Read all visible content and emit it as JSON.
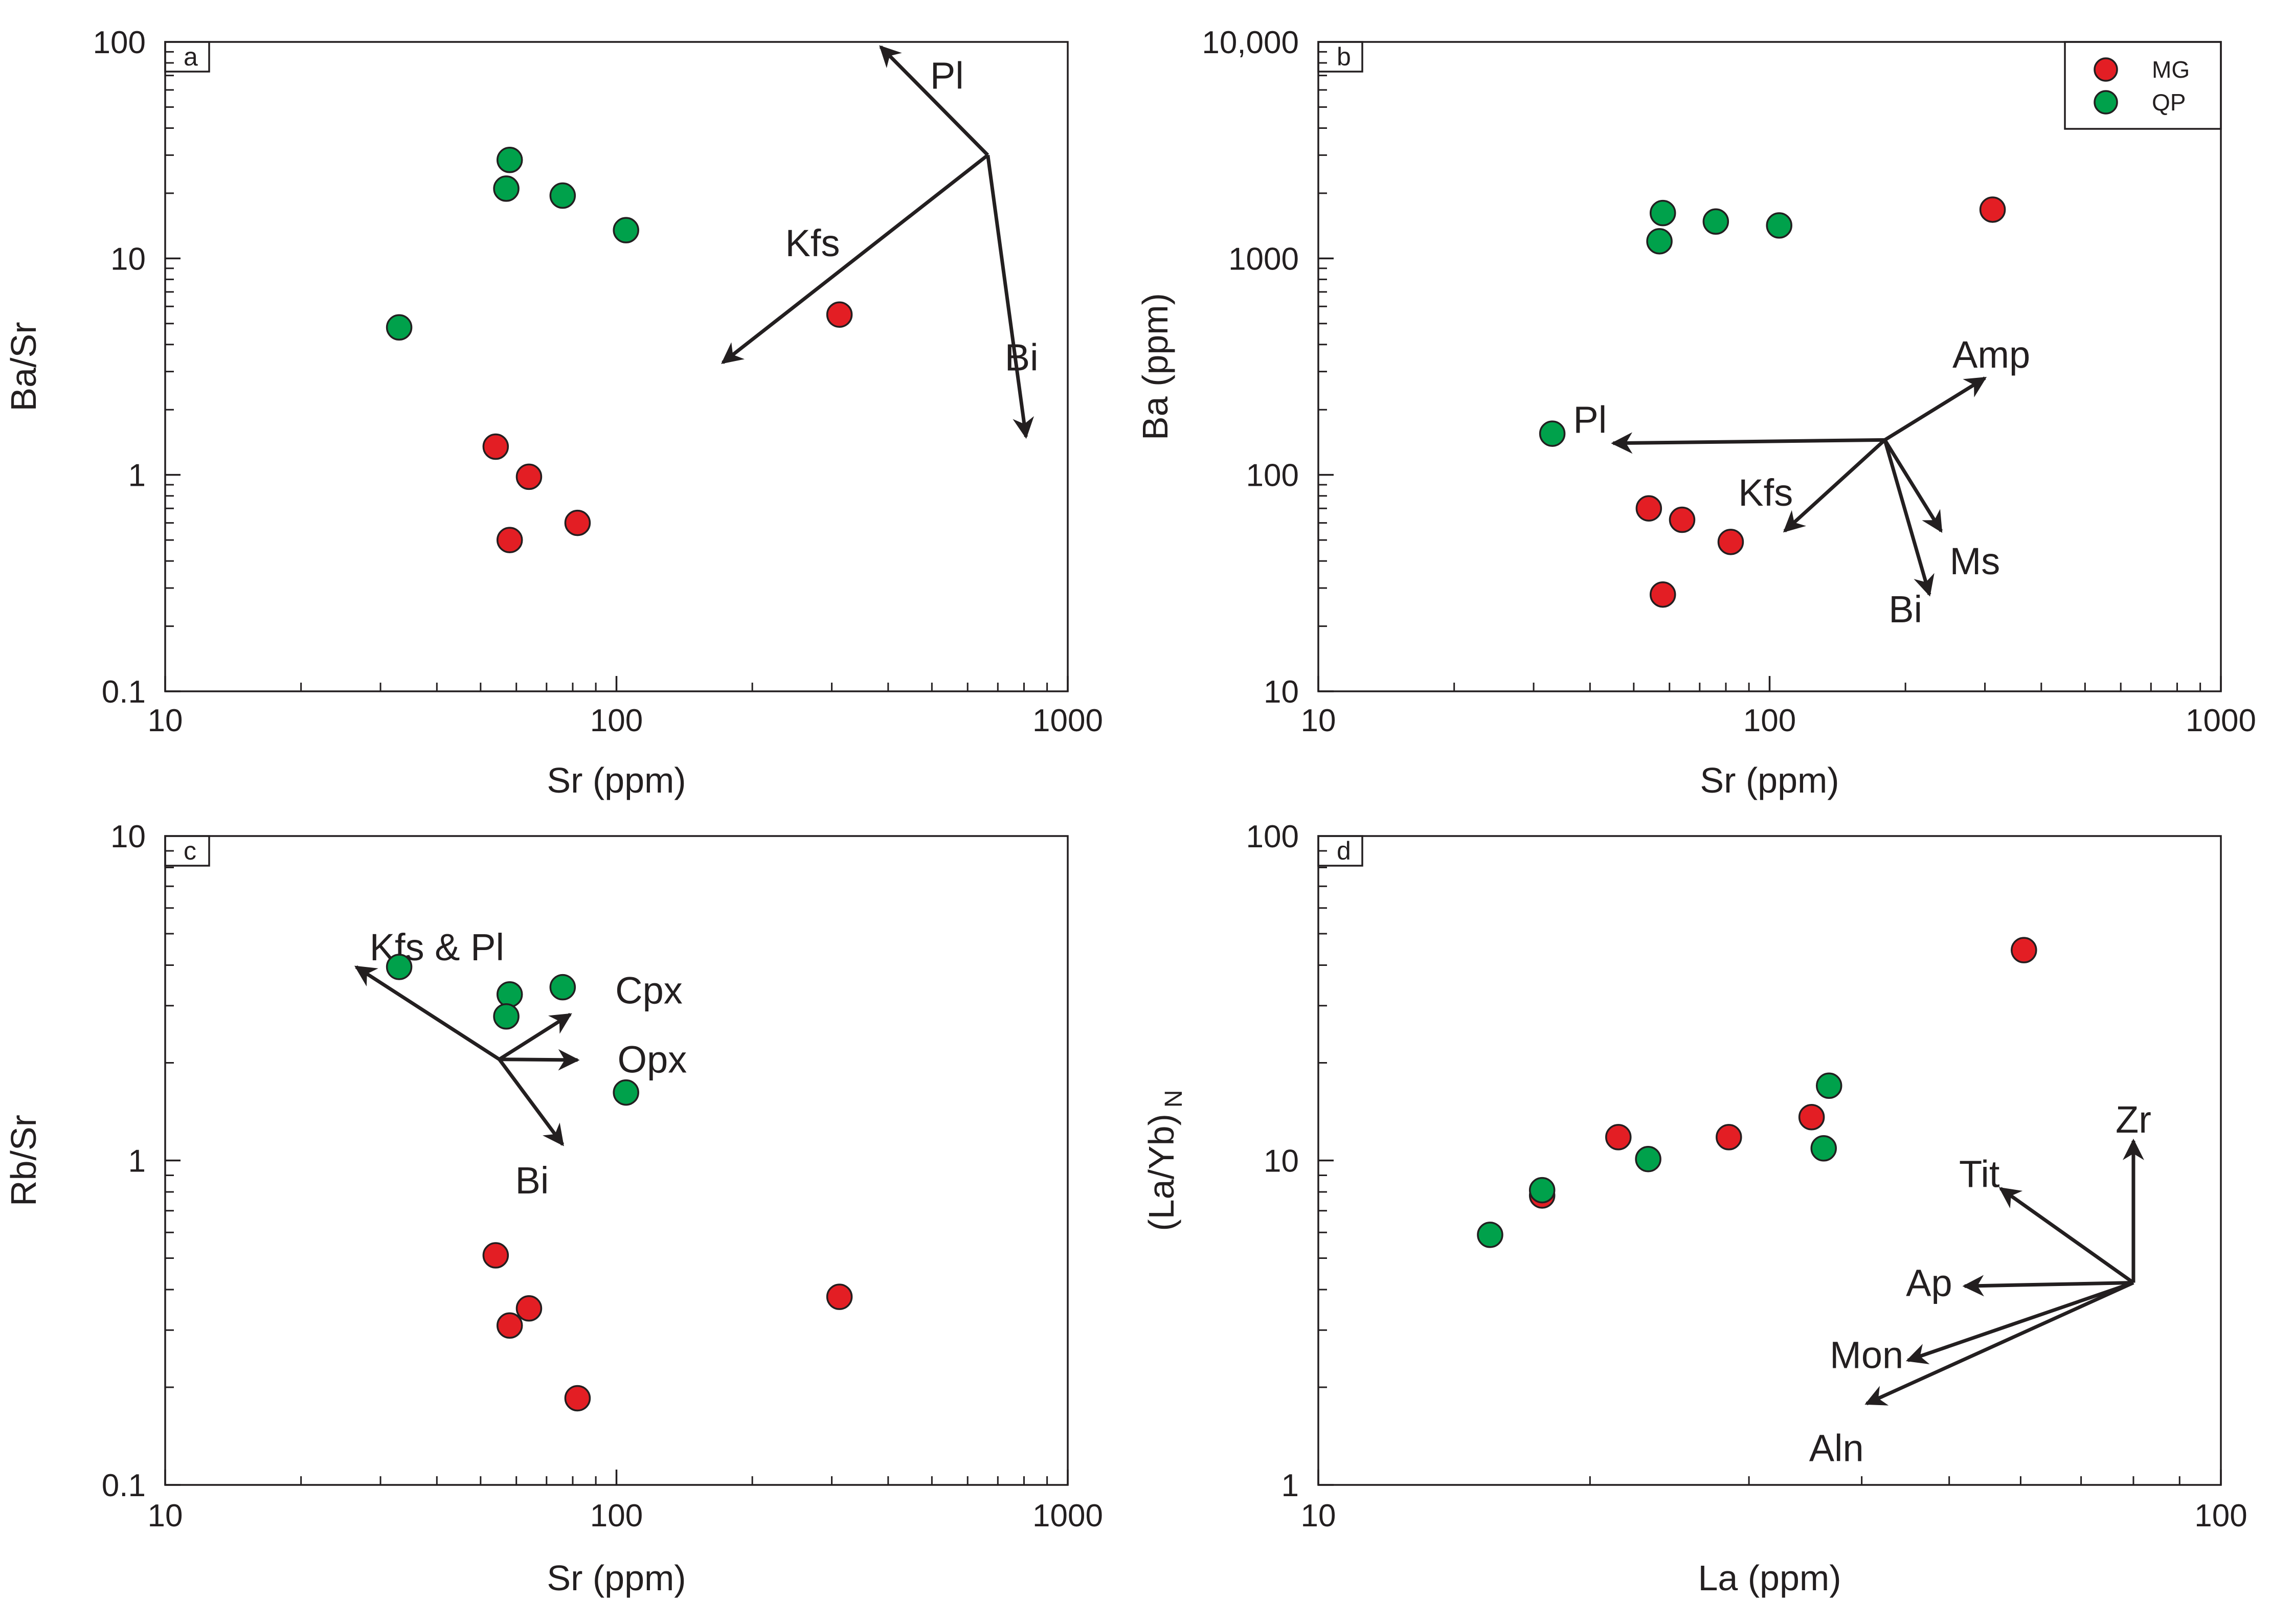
{
  "colors": {
    "MG": "#e31e24",
    "QP": "#00a14b",
    "ink": "#231f20"
  },
  "chart_data": [
    {
      "panel": "a",
      "type": "scatter",
      "xlabel": "Sr (ppm)",
      "ylabel": "Ba/Sr",
      "xscale": "log",
      "yscale": "log",
      "xlim": [
        10,
        1000
      ],
      "ylim": [
        0.1,
        100
      ],
      "xticks": [
        "10",
        "100",
        "1000"
      ],
      "yticks": [
        "0.1",
        "1",
        "10",
        "100"
      ],
      "series": [
        {
          "name": "MG",
          "points": [
            [
              312,
              5.5
            ],
            [
              54,
              1.35
            ],
            [
              64,
              0.98
            ],
            [
              82,
              0.6
            ],
            [
              58,
              0.5
            ]
          ]
        },
        {
          "name": "QP",
          "points": [
            [
              58,
              28.5
            ],
            [
              57,
              21
            ],
            [
              76,
              19.5
            ],
            [
              105,
              13.5
            ],
            [
              33,
              4.8
            ]
          ]
        }
      ],
      "vectors": {
        "origin": [
          665,
          30
        ],
        "items": [
          {
            "label": "Pl",
            "to": [
              385,
              95
            ],
            "label_at": [
              540,
              70
            ]
          },
          {
            "label": "Kfs",
            "to": [
              172,
              3.3
            ],
            "label_at": [
              272,
              11.8
            ]
          },
          {
            "label": "Bi",
            "to": [
              808,
              1.5
            ],
            "label_at": [
              790,
              3.5
            ]
          }
        ]
      }
    },
    {
      "panel": "b",
      "type": "scatter",
      "xlabel": "Sr (ppm)",
      "ylabel": "Ba (ppm)",
      "xscale": "log",
      "yscale": "log",
      "xlim": [
        10,
        1000
      ],
      "ylim": [
        10,
        10000
      ],
      "xticks": [
        "10",
        "100",
        "1000"
      ],
      "yticks": [
        "10",
        "100",
        "1000",
        "10,000"
      ],
      "legend": {
        "position": "top-right",
        "entries": [
          "MG",
          "QP"
        ]
      },
      "series": [
        {
          "name": "MG",
          "points": [
            [
              312,
              1680
            ],
            [
              54,
              70
            ],
            [
              64,
              62
            ],
            [
              82,
              49
            ],
            [
              58,
              28
            ]
          ]
        },
        {
          "name": "QP",
          "points": [
            [
              58,
              1620
            ],
            [
              57,
              1200
            ],
            [
              76,
              1480
            ],
            [
              105,
              1420
            ],
            [
              33,
              155
            ]
          ]
        }
      ],
      "vectors": {
        "origin": [
          180,
          145
        ],
        "items": [
          {
            "label": "Amp",
            "to": [
              300,
              280
            ],
            "label_at": [
              310,
              360
            ]
          },
          {
            "label": "Pl",
            "to": [
              45,
              140
            ],
            "label_at": [
              40,
              180
            ]
          },
          {
            "label": "Kfs",
            "to": [
              108,
              55
            ],
            "label_at": [
              98,
              83
            ]
          },
          {
            "label": "Ms",
            "to": [
              240,
              55
            ],
            "label_at": [
              285,
              40
            ]
          },
          {
            "label": "Bi",
            "to": [
              226,
              28
            ],
            "label_at": [
              200,
              24
            ]
          }
        ]
      }
    },
    {
      "panel": "c",
      "type": "scatter",
      "xlabel": "Sr (ppm)",
      "ylabel": "Rb/Sr",
      "xscale": "log",
      "yscale": "log",
      "xlim": [
        10,
        1000
      ],
      "ylim": [
        0.1,
        10
      ],
      "xticks": [
        "10",
        "100",
        "1000"
      ],
      "yticks": [
        "0.1",
        "1",
        "10"
      ],
      "series": [
        {
          "name": "MG",
          "points": [
            [
              312,
              0.38
            ],
            [
              54,
              0.51
            ],
            [
              64,
              0.35
            ],
            [
              58,
              0.31
            ],
            [
              82,
              0.185
            ]
          ]
        },
        {
          "name": "QP",
          "points": [
            [
              33,
              3.95
            ],
            [
              58,
              3.25
            ],
            [
              57,
              2.78
            ],
            [
              76,
              3.42
            ],
            [
              105,
              1.62
            ]
          ]
        }
      ],
      "vectors": {
        "origin": [
          55,
          2.05
        ],
        "items": [
          {
            "label": "Kfs & Pl",
            "to": [
              26.5,
              3.95
            ],
            "label_at": [
              40,
              4.55
            ]
          },
          {
            "label": "Cpx",
            "to": [
              79,
              2.82
            ],
            "label_at": [
              118,
              3.35
            ]
          },
          {
            "label": "Opx",
            "to": [
              82,
              2.04
            ],
            "label_at": [
              120,
              2.05
            ]
          },
          {
            "label": "Bi",
            "to": [
              76,
              1.12
            ],
            "label_at": [
              65,
              0.87
            ]
          }
        ]
      }
    },
    {
      "panel": "d",
      "type": "scatter",
      "xlabel": "La (ppm)",
      "ylabel": "(La/Yb)",
      "ylabel_subscript": "N",
      "xscale": "log",
      "yscale": "log",
      "xlim": [
        10,
        100
      ],
      "ylim": [
        1,
        100
      ],
      "xticks": [
        "10",
        "100"
      ],
      "yticks": [
        "1",
        "10",
        "100"
      ],
      "series": [
        {
          "name": "MG",
          "points": [
            [
              17.7,
              7.8
            ],
            [
              21.5,
              11.8
            ],
            [
              28.5,
              11.8
            ],
            [
              35.2,
              13.6
            ],
            [
              60.5,
              44.5
            ]
          ]
        },
        {
          "name": "QP",
          "points": [
            [
              15.5,
              5.9
            ],
            [
              17.7,
              8.1
            ],
            [
              23.2,
              10.1
            ],
            [
              36.8,
              17
            ],
            [
              36.3,
              10.9
            ]
          ]
        }
      ],
      "vectors": {
        "origin": [
          80,
          4.2
        ],
        "items": [
          {
            "label": "Zr",
            "to": [
              80,
              11.5
            ],
            "label_at": [
              80,
              13.4
            ]
          },
          {
            "label": "Tit",
            "to": [
              57,
              8.2
            ],
            "label_at": [
              54,
              9.1
            ]
          },
          {
            "label": "Ap",
            "to": [
              52,
              4.1
            ],
            "label_at": [
              47.5,
              4.2
            ]
          },
          {
            "label": "Mon",
            "to": [
              45,
              2.42
            ],
            "label_at": [
              40.5,
              2.52
            ]
          },
          {
            "label": "Aln",
            "to": [
              40.5,
              1.78
            ],
            "label_at": [
              37.5,
              1.3
            ]
          }
        ]
      }
    }
  ]
}
